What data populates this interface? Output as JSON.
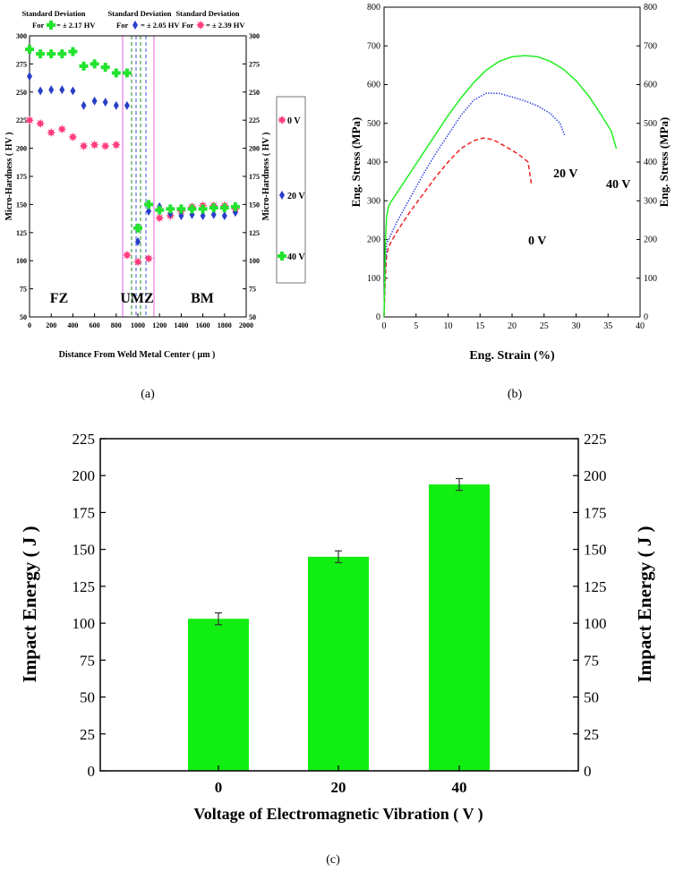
{
  "panels": {
    "a": {
      "caption": "(a)"
    },
    "b": {
      "caption": "(b)"
    },
    "c": {
      "caption": "(c)"
    }
  },
  "chart_data": [
    {
      "panel": "a",
      "type": "scatter",
      "title": "",
      "xlabel": "Distance From Weld Metal Center ( μm )",
      "ylabel": "Micro-Hardness ( HV )",
      "ylabel_right": "Micro-Hardness ( HV )",
      "xlim": [
        0,
        2000
      ],
      "ylim": [
        50,
        300
      ],
      "xticks": [
        "0",
        "200",
        "400",
        "600",
        "800",
        "1000",
        "1200",
        "1400",
        "1600",
        "1800",
        "2000"
      ],
      "yticks": [
        "50",
        "75",
        "100",
        "125",
        "150",
        "175",
        "200",
        "225",
        "250",
        "275",
        "300"
      ],
      "zone_labels": [
        "FZ",
        "UMZ",
        "BM"
      ],
      "std_dev": [
        {
          "line1": "Standard Deviation",
          "prefix": "For",
          "value": "= ± 2.17 HV",
          "color": "#22e22e"
        },
        {
          "line1": "Standard Deviation",
          "prefix": "For",
          "value": "= ± 2.05 HV",
          "color": "#2a3fc8"
        },
        {
          "line1": "Standard Deviation",
          "prefix": "For",
          "value": "= ± 2.39 HV",
          "color": "#ff3d7f"
        }
      ],
      "series": [
        {
          "name": "0 V",
          "color": "#ff3d7f",
          "x": [
            0,
            100,
            200,
            300,
            400,
            500,
            600,
            700,
            800,
            900,
            1000,
            1100,
            1200,
            1300,
            1400,
            1500,
            1600,
            1700,
            1800,
            1900
          ],
          "y": [
            225,
            222,
            214,
            217,
            210,
            202,
            203,
            202,
            203,
            105,
            99,
            102,
            138,
            140,
            144,
            148,
            149,
            149,
            149,
            146
          ]
        },
        {
          "name": "20 V",
          "color": "#2a3fc8",
          "x": [
            0,
            100,
            200,
            300,
            400,
            500,
            600,
            700,
            800,
            900,
            1000,
            1100,
            1200,
            1300,
            1400,
            1500,
            1600,
            1700,
            1800,
            1900
          ],
          "y": [
            264,
            251,
            252,
            252,
            251,
            238,
            242,
            241,
            238,
            238,
            117,
            144,
            148,
            142,
            140,
            141,
            140,
            141,
            140,
            143
          ]
        },
        {
          "name": "40 V",
          "color": "#22e22e",
          "x": [
            0,
            100,
            200,
            300,
            400,
            500,
            600,
            700,
            800,
            900,
            1000,
            1100,
            1200,
            1300,
            1400,
            1500,
            1600,
            1700,
            1800,
            1900
          ],
          "y": [
            288,
            284,
            284,
            284,
            286,
            273,
            275,
            272,
            267,
            267,
            129,
            150,
            145,
            146,
            146,
            146,
            146,
            147,
            147,
            148
          ]
        }
      ],
      "legend": [
        "0 V",
        "20 V",
        "40 V"
      ]
    },
    {
      "panel": "b",
      "type": "line",
      "title": "",
      "xlabel": "Eng. Strain (%)",
      "ylabel": "Eng. Stress (MPa)",
      "ylabel_right": "Eng. Stress (MPa)",
      "xlim": [
        0,
        40
      ],
      "ylim": [
        0,
        800
      ],
      "xticks": [
        "0",
        "5",
        "10",
        "15",
        "20",
        "25",
        "30",
        "35",
        "40"
      ],
      "yticks": [
        "0",
        "100",
        "200",
        "300",
        "400",
        "500",
        "600",
        "700",
        "800"
      ],
      "series": [
        {
          "name": "0 V",
          "color": "#ee2222",
          "dash": "dashed",
          "x": [
            0,
            0.2,
            0.4,
            0.7,
            1,
            2,
            3,
            4,
            6,
            8,
            10,
            12,
            14,
            15.5,
            17,
            19,
            21,
            22.5,
            23
          ],
          "y": [
            0,
            100,
            160,
            180,
            190,
            220,
            245,
            270,
            315,
            360,
            400,
            435,
            455,
            462,
            458,
            440,
            420,
            400,
            345
          ]
        },
        {
          "name": "20 V",
          "color": "#3344dd",
          "dash": "dotted",
          "x": [
            0,
            0.2,
            0.4,
            0.7,
            1,
            2,
            4,
            6,
            8,
            10,
            12,
            14,
            16,
            18,
            20,
            22,
            24,
            26,
            27.5,
            28.2
          ],
          "y": [
            0,
            130,
            190,
            200,
            210,
            245,
            305,
            365,
            420,
            470,
            520,
            560,
            578,
            577,
            568,
            558,
            545,
            525,
            500,
            470
          ]
        },
        {
          "name": "40 V",
          "color": "#22ee22",
          "dash": "solid",
          "x": [
            0,
            0.2,
            0.4,
            0.7,
            1,
            2,
            4,
            6,
            8,
            10,
            12,
            14,
            16,
            18,
            20,
            22,
            24,
            26,
            28,
            30,
            32,
            34,
            35.5,
            36.3
          ],
          "y": [
            0,
            190,
            260,
            285,
            295,
            320,
            370,
            420,
            470,
            520,
            565,
            605,
            638,
            660,
            672,
            675,
            672,
            660,
            640,
            610,
            570,
            520,
            480,
            435
          ]
        }
      ],
      "annotations": [
        "0 V",
        "20 V",
        "40 V"
      ]
    },
    {
      "panel": "c",
      "type": "bar",
      "title": "",
      "xlabel": "Voltage of Electromagnetic Vibration ( V )",
      "ylabel": "Impact Energy ( J )",
      "ylabel_right": "Impact Energy ( J )",
      "categories": [
        "0",
        "20",
        "40"
      ],
      "values": [
        103,
        145,
        194
      ],
      "errors": [
        4,
        4,
        4
      ],
      "ylim": [
        0,
        225
      ],
      "yticks": [
        "0",
        "25",
        "50",
        "75",
        "100",
        "125",
        "150",
        "175",
        "200",
        "225"
      ],
      "bar_color": "#11ee11"
    }
  ]
}
